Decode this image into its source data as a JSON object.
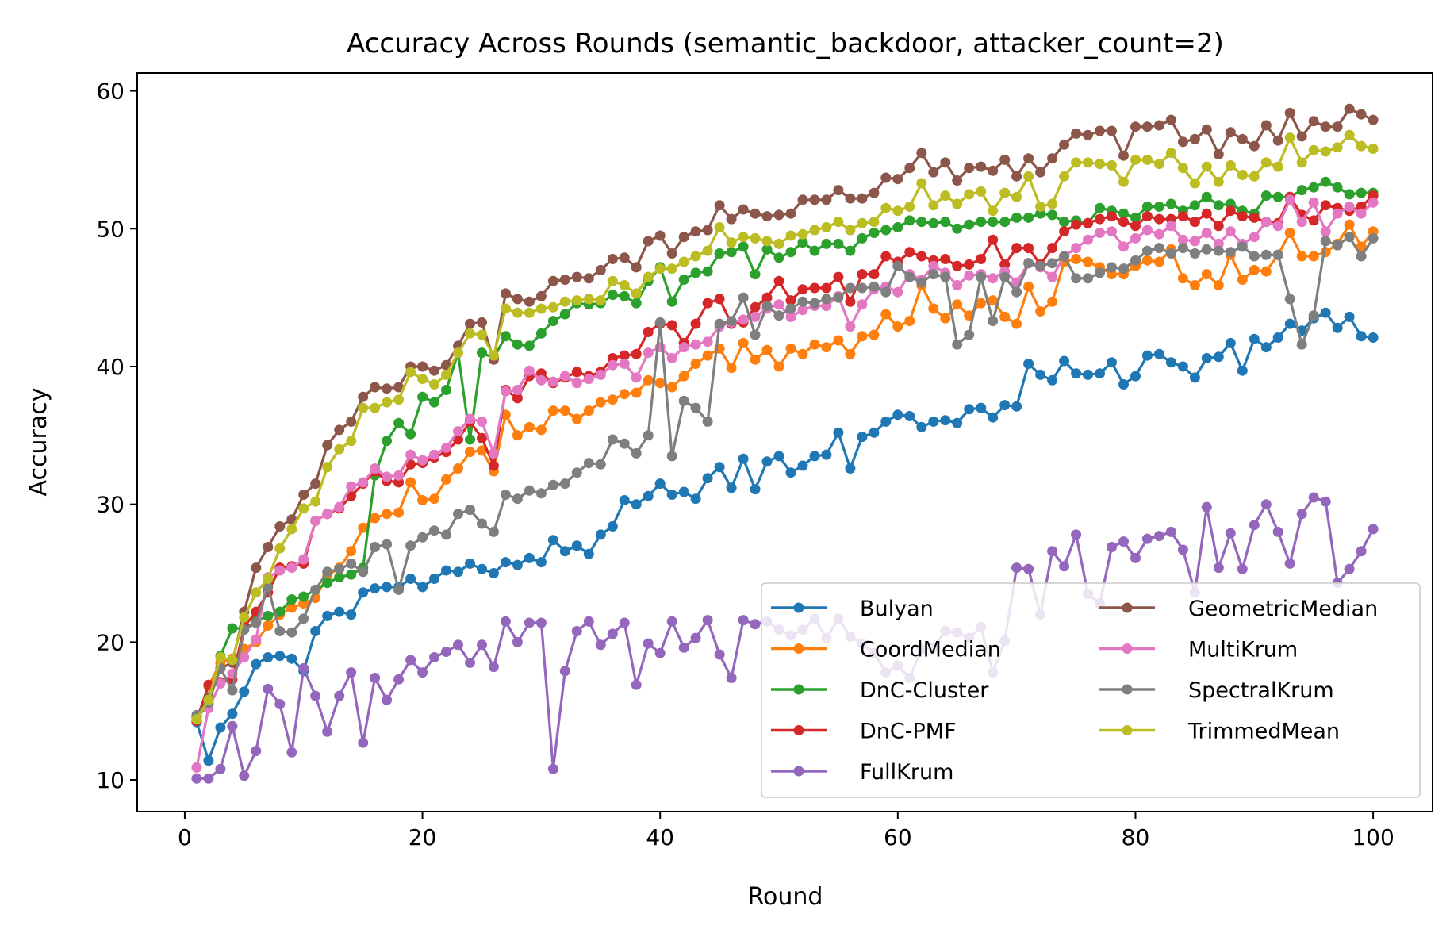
{
  "chart_data": {
    "type": "line",
    "title": "Accuracy Across Rounds (semantic_backdoor, attacker_count=2)",
    "xlabel": "Round",
    "ylabel": "Accuracy",
    "xlim": [
      -4,
      105
    ],
    "ylim": [
      7.7,
      61.3
    ],
    "xticks": [
      0,
      20,
      40,
      60,
      80,
      100
    ],
    "yticks": [
      10,
      20,
      30,
      40,
      50,
      60
    ],
    "grid": false,
    "legend_position": "bottom-right",
    "legend_columns": 2,
    "x": [
      1,
      2,
      3,
      4,
      5,
      6,
      7,
      8,
      9,
      10,
      11,
      12,
      13,
      14,
      15,
      16,
      17,
      18,
      19,
      20,
      21,
      22,
      23,
      24,
      25,
      26,
      27,
      28,
      29,
      30,
      31,
      32,
      33,
      34,
      35,
      36,
      37,
      38,
      39,
      40,
      41,
      42,
      43,
      44,
      45,
      46,
      47,
      48,
      49,
      50,
      51,
      52,
      53,
      54,
      55,
      56,
      57,
      58,
      59,
      60,
      61,
      62,
      63,
      64,
      65,
      66,
      67,
      68,
      69,
      70,
      71,
      72,
      73,
      74,
      75,
      76,
      77,
      78,
      79,
      80,
      81,
      82,
      83,
      84,
      85,
      86,
      87,
      88,
      89,
      90,
      91,
      92,
      93,
      94,
      95,
      96,
      97,
      98,
      99,
      100
    ],
    "series": [
      {
        "name": "Bulyan",
        "color": "#1f77b4",
        "values": [
          14.2,
          11.4,
          13.8,
          14.8,
          16.4,
          18.4,
          18.9,
          19.0,
          18.8,
          17.9,
          20.8,
          21.9,
          22.2,
          22.0,
          23.6,
          23.9,
          24.0,
          24.0,
          24.6,
          24.0,
          24.6,
          25.2,
          25.1,
          25.7,
          25.3,
          25.0,
          25.8,
          25.6,
          26.1,
          25.8,
          27.4,
          26.6,
          27.0,
          26.4,
          27.8,
          28.4,
          30.3,
          30.0,
          30.6,
          31.5,
          30.7,
          30.9,
          30.4,
          31.9,
          32.7,
          31.2,
          33.3,
          31.1,
          33.1,
          33.5,
          32.3,
          32.8,
          33.5,
          33.6,
          35.2,
          32.6,
          34.9,
          35.2,
          36.0,
          36.5,
          36.4,
          35.6,
          36.0,
          36.1,
          35.9,
          36.9,
          37.0,
          36.3,
          37.2,
          37.1,
          40.2,
          39.4,
          39.0,
          40.4,
          39.5,
          39.4,
          39.5,
          40.3,
          38.7,
          39.3,
          40.8,
          40.9,
          40.3,
          40.0,
          39.2,
          40.6,
          40.7,
          41.7,
          39.7,
          42.0,
          41.4,
          42.1,
          43.1,
          42.6,
          43.5,
          43.9,
          42.8,
          43.6,
          42.2,
          42.1
        ]
      },
      {
        "name": "CoordMedian",
        "color": "#ff7f0e",
        "values": [
          14.3,
          16.8,
          18.5,
          18.8,
          19.5,
          20.0,
          21.2,
          22.0,
          22.5,
          22.8,
          23.2,
          24.8,
          25.4,
          26.6,
          28.3,
          29.0,
          29.3,
          29.4,
          31.6,
          30.3,
          30.4,
          31.8,
          32.6,
          33.8,
          33.9,
          32.4,
          36.5,
          35.0,
          35.6,
          35.4,
          36.8,
          36.8,
          36.2,
          36.8,
          37.4,
          37.6,
          38.0,
          38.1,
          39.0,
          38.8,
          38.5,
          39.3,
          40.2,
          40.8,
          41.3,
          39.9,
          41.7,
          40.5,
          41.2,
          40.0,
          41.3,
          40.9,
          41.6,
          41.4,
          41.9,
          40.9,
          42.2,
          42.3,
          43.8,
          42.9,
          43.3,
          45.9,
          44.2,
          43.5,
          44.5,
          43.7,
          44.6,
          44.8,
          43.6,
          43.1,
          45.8,
          44.0,
          44.7,
          47.6,
          47.8,
          47.6,
          47.2,
          46.7,
          46.7,
          47.3,
          47.7,
          47.6,
          48.5,
          46.4,
          45.9,
          46.7,
          45.9,
          48.1,
          46.3,
          47.0,
          46.9,
          48.1,
          49.7,
          48.0,
          48.0,
          48.3,
          48.9,
          50.3,
          48.7,
          49.8
        ]
      },
      {
        "name": "DnC-Cluster",
        "color": "#2ca02c",
        "values": [
          14.5,
          15.5,
          19.0,
          21.0,
          21.0,
          21.5,
          21.9,
          22.2,
          23.1,
          23.3,
          23.8,
          24.3,
          24.7,
          24.9,
          25.4,
          32.1,
          34.6,
          35.9,
          35.1,
          37.8,
          37.4,
          38.3,
          41.0,
          34.7,
          41.0,
          40.6,
          42.2,
          41.6,
          41.5,
          42.4,
          43.3,
          43.8,
          44.6,
          44.5,
          44.6,
          45.2,
          45.1,
          44.6,
          46.2,
          47.2,
          44.7,
          46.3,
          46.8,
          46.9,
          48.2,
          48.3,
          48.7,
          46.7,
          48.5,
          47.9,
          48.3,
          49.0,
          48.4,
          48.9,
          48.9,
          48.4,
          49.3,
          49.7,
          49.9,
          50.1,
          50.6,
          50.5,
          50.4,
          50.5,
          50.0,
          50.3,
          50.5,
          50.5,
          50.5,
          50.8,
          50.8,
          51.1,
          51.0,
          50.5,
          50.6,
          50.4,
          51.5,
          51.3,
          51.1,
          50.8,
          51.6,
          51.6,
          51.8,
          51.3,
          51.7,
          52.3,
          51.7,
          51.8,
          51.3,
          51.1,
          52.4,
          52.3,
          52.3,
          52.8,
          53.0,
          53.4,
          53.0,
          52.5,
          52.6,
          52.6
        ]
      },
      {
        "name": "DnC-PMF",
        "color": "#d62728",
        "values": [
          14.3,
          16.9,
          17.1,
          17.3,
          21.1,
          22.2,
          23.6,
          25.4,
          25.5,
          25.7,
          28.8,
          29.3,
          29.7,
          30.6,
          31.5,
          32.4,
          31.7,
          31.6,
          32.9,
          33.0,
          33.4,
          33.8,
          34.7,
          36.0,
          34.8,
          32.8,
          38.3,
          37.7,
          39.3,
          39.5,
          38.8,
          39.2,
          39.6,
          39.3,
          39.6,
          40.6,
          40.8,
          40.9,
          42.5,
          43.1,
          43.0,
          41.7,
          43.1,
          44.6,
          44.9,
          43.1,
          43.2,
          44.3,
          45.0,
          46.2,
          44.8,
          45.6,
          45.7,
          45.7,
          46.5,
          44.7,
          46.7,
          46.7,
          48.0,
          47.6,
          48.3,
          48.0,
          47.7,
          47.8,
          47.3,
          47.4,
          47.8,
          49.2,
          47.4,
          48.6,
          48.6,
          47.4,
          48.6,
          49.8,
          50.3,
          50.4,
          50.7,
          50.9,
          50.5,
          50.2,
          50.9,
          50.7,
          50.7,
          50.9,
          50.5,
          51.1,
          50.2,
          51.3,
          50.9,
          50.8,
          50.5,
          50.4,
          52.3,
          51.0,
          50.6,
          51.7,
          51.5,
          51.3,
          51.6,
          52.4
        ]
      },
      {
        "name": "FullKrum",
        "color": "#9467bd",
        "values": [
          10.1,
          10.1,
          10.8,
          13.9,
          10.3,
          12.1,
          16.6,
          15.5,
          12.0,
          18.1,
          16.1,
          13.5,
          16.1,
          17.8,
          12.7,
          17.4,
          15.8,
          17.3,
          18.7,
          17.8,
          18.9,
          19.3,
          19.8,
          18.5,
          19.8,
          18.2,
          21.5,
          20.0,
          21.4,
          21.4,
          10.8,
          17.9,
          20.8,
          21.5,
          19.8,
          20.6,
          21.4,
          16.9,
          19.9,
          19.2,
          21.5,
          19.6,
          20.3,
          21.6,
          19.1,
          17.4,
          21.6,
          21.3,
          21.5,
          20.9,
          20.5,
          20.9,
          21.7,
          20.3,
          21.7,
          20.4,
          19.9,
          19.2,
          17.8,
          18.3,
          17.4,
          19.5,
          19.6,
          20.8,
          20.7,
          20.3,
          21.1,
          17.8,
          20.1,
          25.4,
          25.3,
          22.0,
          26.6,
          25.5,
          27.8,
          23.5,
          22.8,
          26.9,
          27.3,
          26.1,
          27.5,
          27.7,
          28.0,
          26.7,
          23.6,
          29.8,
          25.4,
          27.9,
          25.3,
          28.5,
          30.0,
          28.0,
          25.7,
          29.3,
          30.5,
          30.2,
          24.3,
          25.3,
          26.6,
          28.2
        ]
      },
      {
        "name": "GeometricMedian",
        "color": "#8c564b",
        "values": [
          14.6,
          16.0,
          18.1,
          18.5,
          22.2,
          25.4,
          26.9,
          28.4,
          28.9,
          30.7,
          31.5,
          34.3,
          35.4,
          36.0,
          37.8,
          38.5,
          38.4,
          38.5,
          40.0,
          40.0,
          39.7,
          40.1,
          41.5,
          43.1,
          43.2,
          40.5,
          45.3,
          44.9,
          44.7,
          45.1,
          46.2,
          46.3,
          46.5,
          46.4,
          47.0,
          47.8,
          47.9,
          47.2,
          49.1,
          49.5,
          48.2,
          49.4,
          49.8,
          49.9,
          51.7,
          50.7,
          51.4,
          51.1,
          50.9,
          51.0,
          51.1,
          52.1,
          52.1,
          52.1,
          52.8,
          52.2,
          52.2,
          52.6,
          53.7,
          53.6,
          54.4,
          55.5,
          54.1,
          54.8,
          53.5,
          54.4,
          54.5,
          54.2,
          55.0,
          53.8,
          55.1,
          54.1,
          55.1,
          56.1,
          56.9,
          56.8,
          57.1,
          57.1,
          55.3,
          57.4,
          57.4,
          57.5,
          57.9,
          56.3,
          56.5,
          57.2,
          55.4,
          57.0,
          56.5,
          56.0,
          57.5,
          56.4,
          58.4,
          56.7,
          57.8,
          57.4,
          57.4,
          58.7,
          58.3,
          57.9
        ]
      },
      {
        "name": "MultiKrum",
        "color": "#e377c2",
        "values": [
          10.9,
          15.2,
          17.0,
          17.7,
          18.9,
          20.2,
          24.7,
          25.2,
          25.4,
          26.0,
          28.8,
          29.3,
          29.8,
          31.3,
          31.6,
          32.6,
          32.0,
          32.1,
          33.6,
          33.2,
          33.6,
          34.1,
          35.3,
          36.2,
          36.0,
          33.7,
          38.2,
          38.3,
          39.7,
          39.0,
          38.9,
          39.3,
          38.8,
          39.1,
          39.4,
          40.1,
          40.2,
          39.2,
          41.0,
          41.4,
          40.6,
          41.4,
          41.6,
          41.8,
          42.9,
          43.2,
          43.4,
          43.6,
          44.2,
          44.5,
          43.6,
          44.1,
          44.4,
          44.4,
          45.1,
          42.9,
          44.5,
          45.6,
          45.8,
          45.4,
          46.7,
          46.3,
          47.3,
          46.8,
          45.9,
          46.6,
          46.7,
          46.4,
          46.9,
          46.1,
          47.5,
          47.2,
          46.5,
          48.0,
          48.6,
          49.2,
          49.7,
          49.8,
          48.7,
          49.3,
          49.9,
          49.6,
          50.2,
          49.2,
          49.1,
          49.7,
          48.9,
          49.8,
          48.9,
          49.4,
          50.5,
          50.2,
          52.1,
          50.5,
          51.9,
          49.8,
          51.1,
          51.6,
          51.1,
          51.9
        ]
      },
      {
        "name": "SpectralKrum",
        "color": "#7f7f7f",
        "values": [
          14.7,
          15.6,
          18.1,
          16.5,
          20.9,
          21.4,
          24.0,
          20.8,
          20.7,
          21.7,
          23.8,
          25.1,
          25.3,
          25.7,
          25.1,
          26.9,
          27.1,
          23.8,
          27.0,
          27.6,
          28.1,
          27.8,
          29.3,
          29.6,
          28.6,
          28.0,
          30.7,
          30.4,
          31.0,
          30.8,
          31.4,
          31.5,
          32.3,
          33.0,
          32.9,
          34.7,
          34.4,
          33.7,
          35.0,
          43.2,
          33.5,
          37.5,
          37.0,
          36.0,
          43.1,
          43.3,
          45.0,
          42.3,
          44.4,
          43.7,
          44.2,
          44.7,
          44.6,
          44.9,
          45.0,
          45.7,
          45.7,
          45.8,
          45.4,
          47.3,
          46.5,
          46.1,
          46.7,
          46.5,
          41.6,
          42.3,
          46.5,
          43.3,
          46.5,
          45.4,
          47.5,
          47.3,
          47.5,
          48.0,
          46.4,
          46.4,
          46.8,
          47.2,
          47.1,
          47.7,
          48.4,
          48.6,
          48.2,
          48.6,
          48.2,
          48.5,
          48.4,
          48.3,
          48.7,
          48.0,
          48.1,
          48.1,
          44.9,
          41.6,
          43.7,
          49.1,
          48.8,
          49.4,
          48.0,
          49.3
        ]
      },
      {
        "name": "TrimmedMean",
        "color": "#bcbd22",
        "values": [
          14.4,
          15.8,
          18.9,
          18.7,
          21.8,
          23.6,
          24.6,
          26.8,
          28.2,
          29.7,
          30.2,
          32.7,
          34.0,
          34.6,
          37.0,
          37.0,
          37.4,
          37.6,
          39.6,
          39.1,
          38.7,
          39.4,
          41.0,
          42.4,
          42.3,
          40.8,
          44.2,
          43.9,
          43.9,
          44.2,
          44.3,
          44.7,
          44.8,
          44.9,
          44.8,
          46.2,
          45.9,
          45.3,
          46.5,
          47.1,
          47.1,
          47.6,
          48.0,
          48.4,
          50.1,
          49.0,
          49.4,
          49.3,
          49.1,
          48.9,
          49.5,
          49.6,
          49.9,
          50.1,
          50.5,
          49.9,
          50.4,
          50.5,
          51.5,
          51.3,
          51.6,
          53.3,
          51.7,
          52.4,
          51.8,
          52.5,
          52.7,
          51.3,
          52.6,
          52.3,
          53.8,
          51.6,
          51.8,
          53.8,
          54.8,
          54.8,
          54.7,
          54.6,
          53.4,
          55.0,
          55.0,
          54.7,
          55.5,
          54.4,
          53.3,
          54.5,
          53.4,
          54.6,
          53.9,
          53.8,
          54.8,
          54.5,
          56.6,
          54.8,
          55.7,
          55.6,
          55.9,
          56.8,
          56.0,
          55.8
        ]
      }
    ]
  }
}
